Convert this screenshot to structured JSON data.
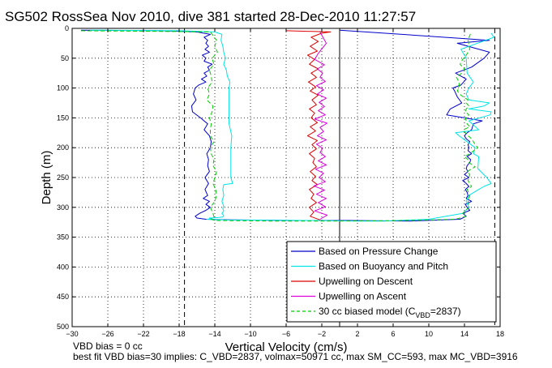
{
  "chart_data": {
    "type": "line",
    "title": "SG502 RossSea Nov 2010, dive 381 started 28-Dec-2010 11:27:57",
    "xlabel": "Vertical Velocity (cm/s)",
    "ylabel": "Depth (m)",
    "xlim": [
      -30,
      18
    ],
    "ylim": [
      0,
      500
    ],
    "y_reversed": true,
    "grid": true,
    "xticks": [
      -30,
      -26,
      -22,
      -18,
      -14,
      -10,
      -6,
      -2,
      2,
      6,
      10,
      14,
      18
    ],
    "xtick_labels": [
      "−30",
      "−26",
      "−22",
      "−18",
      "−14",
      "−10",
      "−6",
      "−2",
      "2",
      "6",
      "10",
      "14",
      "18"
    ],
    "yticks": [
      0,
      50,
      100,
      150,
      200,
      250,
      300,
      350,
      400,
      450,
      500
    ],
    "ytick_labels": [
      "0",
      "50",
      "100",
      "150",
      "200",
      "250",
      "300",
      "350",
      "400",
      "450",
      "500"
    ],
    "legend_position": "bottom-right",
    "vertical_lines": [
      {
        "x": -17.4,
        "style": "dashed",
        "color": "#000000"
      },
      {
        "x": 17.4,
        "style": "dashed",
        "color": "#000000"
      },
      {
        "x": 0,
        "style": "solid",
        "color": "#000000"
      }
    ],
    "series": [
      {
        "name": "Based on Pressure Change",
        "color": "#0000cc",
        "style": "solid",
        "x": [
          -29,
          -20,
          -16,
          -14.5,
          -15.2,
          -14.8,
          -15,
          -14.7,
          -15.1,
          -14.6,
          -15.4,
          -15,
          -15.2,
          -14.3,
          -14.8,
          -14.6,
          -15.2,
          -14.9,
          -15.5,
          -15,
          -15.8,
          -16.2,
          -16.4,
          -16.1,
          -16.6,
          -16.5,
          -15.6,
          -14.8,
          -15.2,
          -14.6,
          -14.4,
          -14.5,
          -14.9,
          -14.7,
          -14.8,
          -14.6,
          -15.1,
          -14.7,
          -15.1,
          -14.8,
          -15.3,
          -14.6,
          -15,
          -14.5,
          -15,
          -15.7,
          -16.2,
          -16,
          -15,
          -12,
          -5,
          1,
          8,
          13.5,
          14.2,
          13.8,
          14.6,
          14.3,
          14.1,
          14.8,
          14.2,
          14.4,
          14.3,
          14.1,
          14.5,
          14.2,
          13.8,
          14.5,
          14,
          14.4,
          14.2,
          14.3,
          14.6,
          14.7,
          14.3,
          14.8,
          14.4,
          14.5,
          14.4,
          14.6,
          14.2,
          14,
          14.3,
          14.8,
          15,
          16,
          14,
          12,
          12.4,
          13.7,
          13.2,
          12.9,
          12.7,
          13.6,
          14.2,
          13,
          14.8,
          16.2,
          16.8,
          13.2,
          16.8,
          0
        ],
        "y": [
          3,
          4,
          6,
          10,
          15,
          20,
          25,
          30,
          35,
          40,
          45,
          50,
          55,
          60,
          65,
          70,
          75,
          80,
          85,
          90,
          95,
          100,
          110,
          120,
          130,
          140,
          150,
          160,
          170,
          180,
          190,
          200,
          210,
          220,
          230,
          240,
          250,
          260,
          270,
          280,
          285,
          290,
          295,
          300,
          305,
          310,
          315,
          318,
          320,
          321,
          322,
          322,
          323,
          320,
          315,
          310,
          305,
          300,
          295,
          290,
          285,
          280,
          275,
          270,
          265,
          260,
          255,
          250,
          245,
          240,
          235,
          230,
          225,
          220,
          215,
          210,
          205,
          200,
          195,
          190,
          185,
          180,
          175,
          170,
          160,
          155,
          150,
          145,
          135,
          125,
          115,
          105,
          100,
          95,
          85,
          75,
          65,
          50,
          40,
          25,
          20,
          3
        ]
      },
      {
        "name": "Based on Buoyancy and Pitch",
        "color": "#00e5e5",
        "style": "solid",
        "x": [
          -28,
          -18,
          -14,
          -13.2,
          -13.3,
          -13.1,
          -13,
          -12.8,
          -13,
          -12.7,
          -12.6,
          -12.3,
          -12.4,
          -12.4,
          -12.4,
          -12.4,
          -12.4,
          -12.1,
          -12.2,
          -12.2,
          -12.2,
          -12.2,
          -12.2,
          -12.1,
          -12,
          -13,
          -13.1,
          -13,
          -13.2,
          -13,
          -13.1,
          -13,
          -13.2,
          -13,
          -13.1,
          -13.5,
          -14.6,
          -14.3,
          -14.9,
          -13,
          -3,
          2,
          5,
          10,
          13.8,
          14.5,
          14.2,
          14.5,
          15.6,
          16.2,
          17,
          16.5,
          15.5,
          15.6,
          15,
          15.2,
          14.3,
          13.4,
          13,
          15.6,
          14.5,
          16.9,
          17,
          14.5,
          16.2,
          16.8,
          14.5,
          14.2,
          14.5,
          15,
          14.3,
          14.2,
          13.6,
          17.3,
          17
        ],
        "y": [
          3,
          4,
          6,
          10,
          20,
          30,
          40,
          50,
          60,
          70,
          80,
          90,
          100,
          110,
          120,
          140,
          160,
          180,
          200,
          210,
          230,
          240,
          250,
          255,
          260,
          262,
          270,
          280,
          290,
          298,
          302,
          306,
          310,
          314,
          316,
          317,
          318,
          319,
          320,
          321,
          322,
          323,
          323,
          320,
          310,
          300,
          290,
          280,
          270,
          265,
          260,
          250,
          235,
          215,
          210,
          200,
          190,
          180,
          175,
          170,
          155,
          145,
          140,
          135,
          130,
          125,
          120,
          110,
          100,
          90,
          75,
          50,
          35,
          15,
          8
        ]
      },
      {
        "name": "Upwelling on Descent",
        "color": "#dd0000",
        "style": "solid",
        "x": [
          -6,
          -1,
          -2,
          -3.2,
          -2.4,
          -3.3,
          -2.5,
          -3.6,
          -2.8,
          -3.4,
          -2.4,
          -3.2,
          -2.6,
          -3.5,
          -2.7,
          -3.3,
          -2.4,
          -3.1,
          -2.6,
          -3.4,
          -2.8,
          -3.2,
          -2.5,
          -3.3,
          -2.7,
          -3.6,
          -2.5,
          -3.1,
          -2.6,
          -3.4,
          -2.8,
          -3,
          -2.6,
          -3.3,
          -2.7,
          -3.1,
          -2.5,
          -3.4,
          -2.9,
          -3.2,
          -2.6,
          -3.4,
          -2.9,
          -3.3,
          -2.2
        ],
        "y": [
          4,
          6,
          8,
          15,
          22,
          30,
          38,
          45,
          52,
          60,
          68,
          75,
          82,
          90,
          98,
          105,
          112,
          120,
          128,
          135,
          142,
          150,
          158,
          165,
          172,
          180,
          188,
          195,
          202,
          210,
          218,
          225,
          232,
          240,
          248,
          255,
          262,
          270,
          278,
          285,
          292,
          300,
          308,
          315,
          321
        ]
      },
      {
        "name": "Upwelling on Ascent",
        "color": "#dd00dd",
        "style": "solid",
        "x": [
          -2.2,
          -1.4,
          -2.8,
          -1.6,
          -2.4,
          -1.5,
          -2.6,
          -1.7,
          -2.9,
          -1.6,
          -2.3,
          -1.8,
          -2.7,
          -1.5,
          -2.4,
          -1.6,
          -2.2,
          -1.9,
          -2.6,
          -1.5,
          -2.5,
          -1.8,
          -2.2,
          -1.4,
          -2.8,
          -1.6,
          -2.4,
          -1.7,
          -2.3,
          -1.5,
          -2.5,
          -1.8,
          -2.6,
          -1.6,
          -2.2,
          -1.9,
          -2.5,
          -1.7,
          -2.8,
          -2.4,
          -1.5,
          -2.2
        ],
        "y": [
          320,
          313,
          306,
          299,
          292,
          285,
          278,
          271,
          264,
          257,
          250,
          243,
          236,
          229,
          222,
          215,
          208,
          201,
          194,
          187,
          180,
          173,
          166,
          159,
          152,
          145,
          138,
          131,
          124,
          117,
          110,
          103,
          96,
          89,
          82,
          75,
          68,
          61,
          52,
          42,
          25,
          6
        ]
      },
      {
        "name": "30 cc biased model (C_VBD=2837)",
        "legend_label_main": "30 cc biased model (C",
        "legend_label_sub": "VBD",
        "legend_label_tail": "=2837)",
        "color": "#00cc00",
        "style": "dashed",
        "x": [
          -29,
          -20,
          -14.5,
          -13.8,
          -14,
          -13.7,
          -14.3,
          -14.1,
          -14.6,
          -14.4,
          -14.3,
          -14.8,
          -14.6,
          -14.9,
          -14.2,
          -14.3,
          -14.6,
          -14.4,
          -14.5,
          -14.5,
          -14.1,
          -14.5,
          -14.4,
          -14.1,
          -14.2,
          -13.8,
          -14,
          -14.2,
          -13.9,
          -13.8,
          -14,
          -14.5,
          -14.2,
          -14.1,
          -14.4,
          -14,
          -8,
          0,
          8,
          13,
          14.2,
          13.8,
          14.5,
          14.4,
          14.6,
          14.3,
          14.8,
          14.4,
          14.6,
          14.3,
          15.2,
          14.5,
          14.4,
          14,
          14.6,
          15.5,
          15.2,
          15,
          14.8,
          14.4,
          14.1,
          13.9,
          14.6,
          14.3,
          14.2,
          14.1,
          14.5,
          14.1,
          14.2,
          14.5,
          14.2,
          14.4,
          13.6,
          13.2,
          13.4,
          13.4,
          13.1,
          13.7,
          14,
          13.5,
          13.8,
          14.2,
          14.6,
          14.4,
          14.7
        ],
        "y": [
          4,
          5,
          6,
          20,
          30,
          40,
          50,
          60,
          70,
          80,
          90,
          100,
          110,
          120,
          130,
          140,
          150,
          160,
          170,
          180,
          190,
          200,
          210,
          220,
          230,
          240,
          250,
          260,
          270,
          280,
          290,
          300,
          310,
          316,
          320,
          322,
          323,
          323,
          322,
          320,
          315,
          310,
          300,
          290,
          280,
          270,
          265,
          255,
          245,
          240,
          232,
          225,
          220,
          215,
          210,
          200,
          195,
          190,
          185,
          180,
          175,
          170,
          165,
          160,
          155,
          150,
          145,
          140,
          135,
          130,
          125,
          120,
          112,
          105,
          98,
          90,
          82,
          75,
          68,
          60,
          52,
          45,
          35,
          20,
          8
        ]
      }
    ],
    "footer_line1": "VBD bias = 0 cc",
    "footer_line2": "best fit VBD bias=30 implies: C_VBD=2837, volmax=50971 cc, max SM_CC=593, max MC_VBD=3916"
  }
}
